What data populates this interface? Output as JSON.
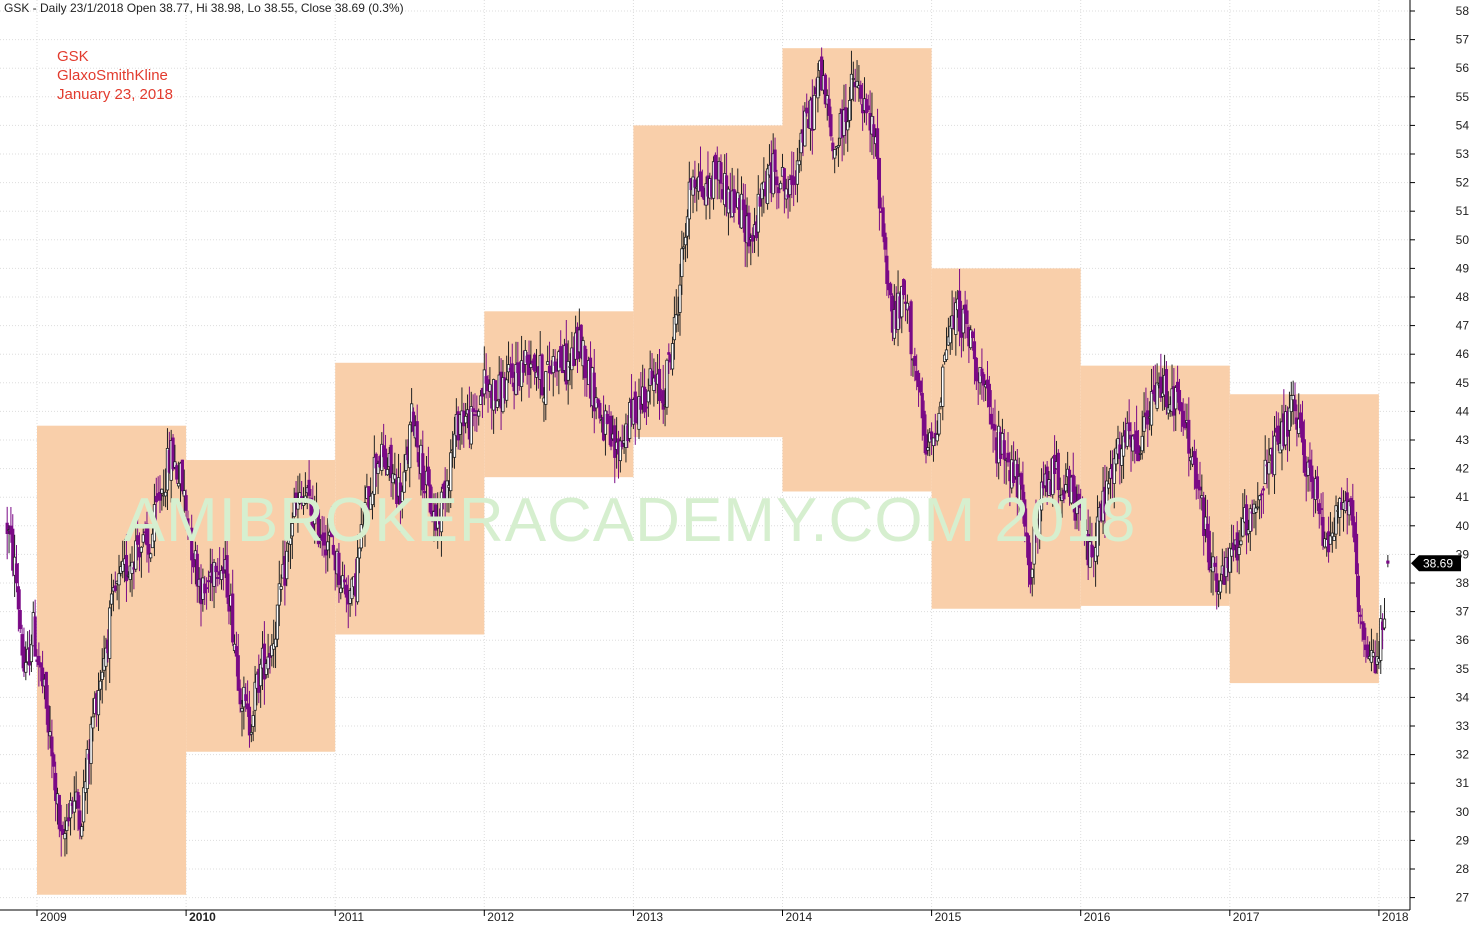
{
  "header": "GSK - Daily 23/1/2018 Open 38.77, Hi 38.98, Lo 38.55, Close 38.69 (0.3%)",
  "annotations": [
    "GSK",
    "GlaxoSmithKline",
    "January 23, 2018"
  ],
  "watermark": "AMIBROKERACADEMY.COM  2018",
  "last_price_label": "38.69",
  "colors": {
    "year_box": "#f9cfaa",
    "candle_up": "#222222",
    "candle_down": "#7a0a86",
    "annotation": "#e23b2e",
    "watermark": "#d6efcf",
    "grid": "#dddddd",
    "price_marker": "#000000"
  },
  "chart_data": {
    "type": "candlestick",
    "symbol": "GSK",
    "interval": "Daily",
    "ylim": [
      27,
      58
    ],
    "xlim": [
      2008.8,
      2018.22
    ],
    "y_ticks": [
      27,
      28,
      29,
      30,
      31,
      32,
      33,
      34,
      35,
      36,
      37,
      38,
      39,
      40,
      41,
      42,
      43,
      44,
      45,
      46,
      47,
      48,
      49,
      50,
      51,
      52,
      53,
      54,
      55,
      56,
      57,
      58
    ],
    "x_ticks": [
      {
        "label": "2009",
        "x": 2009
      },
      {
        "label": "2010",
        "x": 2010
      },
      {
        "label": "2011",
        "x": 2011
      },
      {
        "label": "2012",
        "x": 2012
      },
      {
        "label": "2013",
        "x": 2013
      },
      {
        "label": "2014",
        "x": 2014
      },
      {
        "label": "2015",
        "x": 2015
      },
      {
        "label": "2016",
        "x": 2016
      },
      {
        "label": "2017",
        "x": 2017
      },
      {
        "label": "2018",
        "x": 2018
      }
    ],
    "last_close": {
      "x": 2018.06,
      "open": 38.77,
      "high": 38.98,
      "low": 38.55,
      "close": 38.69
    },
    "yearly_ranges": [
      {
        "year": 2009,
        "low": 27.1,
        "high": 43.5
      },
      {
        "year": 2010,
        "low": 32.1,
        "high": 42.3
      },
      {
        "year": 2011,
        "low": 36.2,
        "high": 45.7
      },
      {
        "year": 2012,
        "low": 41.7,
        "high": 47.5
      },
      {
        "year": 2013,
        "low": 43.1,
        "high": 54.0
      },
      {
        "year": 2014,
        "low": 41.2,
        "high": 56.7
      },
      {
        "year": 2015,
        "low": 37.1,
        "high": 49.0
      },
      {
        "year": 2016,
        "low": 37.2,
        "high": 45.6
      },
      {
        "year": 2017,
        "low": 34.5,
        "high": 44.6
      }
    ],
    "price_path": [
      [
        2008.8,
        40.0
      ],
      [
        2008.86,
        38.2
      ],
      [
        2008.92,
        34.5
      ],
      [
        2008.97,
        36.5
      ],
      [
        2009.05,
        34.0
      ],
      [
        2009.12,
        31.0
      ],
      [
        2009.17,
        28.5
      ],
      [
        2009.22,
        30.5
      ],
      [
        2009.3,
        30.0
      ],
      [
        2009.38,
        33.5
      ],
      [
        2009.45,
        35.5
      ],
      [
        2009.52,
        37.5
      ],
      [
        2009.6,
        38.5
      ],
      [
        2009.68,
        39.5
      ],
      [
        2009.75,
        39.0
      ],
      [
        2009.82,
        41.0
      ],
      [
        2009.9,
        42.5
      ],
      [
        2009.97,
        41.5
      ],
      [
        2010.05,
        39.0
      ],
      [
        2010.12,
        37.5
      ],
      [
        2010.2,
        39.0
      ],
      [
        2010.28,
        38.0
      ],
      [
        2010.36,
        34.5
      ],
      [
        2010.42,
        33.0
      ],
      [
        2010.5,
        35.0
      ],
      [
        2010.58,
        36.0
      ],
      [
        2010.65,
        38.0
      ],
      [
        2010.72,
        40.5
      ],
      [
        2010.8,
        41.0
      ],
      [
        2010.88,
        40.0
      ],
      [
        2010.96,
        39.5
      ],
      [
        2011.05,
        38.0
      ],
      [
        2011.12,
        37.5
      ],
      [
        2011.2,
        40.5
      ],
      [
        2011.28,
        42.5
      ],
      [
        2011.36,
        42.0
      ],
      [
        2011.45,
        41.0
      ],
      [
        2011.52,
        44.0
      ],
      [
        2011.6,
        41.5
      ],
      [
        2011.68,
        40.0
      ],
      [
        2011.76,
        42.0
      ],
      [
        2011.84,
        44.0
      ],
      [
        2011.92,
        43.5
      ],
      [
        2012.0,
        45.0
      ],
      [
        2012.08,
        44.5
      ],
      [
        2012.16,
        45.0
      ],
      [
        2012.24,
        45.5
      ],
      [
        2012.32,
        46.0
      ],
      [
        2012.4,
        45.0
      ],
      [
        2012.48,
        46.0
      ],
      [
        2012.56,
        45.5
      ],
      [
        2012.64,
        46.5
      ],
      [
        2012.72,
        45.0
      ],
      [
        2012.8,
        43.5
      ],
      [
        2012.88,
        42.5
      ],
      [
        2012.96,
        43.5
      ],
      [
        2013.05,
        44.5
      ],
      [
        2013.12,
        45.0
      ],
      [
        2013.2,
        44.5
      ],
      [
        2013.28,
        47.0
      ],
      [
        2013.34,
        50.0
      ],
      [
        2013.4,
        52.5
      ],
      [
        2013.48,
        51.5
      ],
      [
        2013.56,
        52.5
      ],
      [
        2013.64,
        51.5
      ],
      [
        2013.72,
        51.0
      ],
      [
        2013.8,
        50.0
      ],
      [
        2013.88,
        52.0
      ],
      [
        2013.96,
        52.5
      ],
      [
        2014.05,
        51.5
      ],
      [
        2014.12,
        53.5
      ],
      [
        2014.2,
        54.5
      ],
      [
        2014.26,
        56.0
      ],
      [
        2014.34,
        53.0
      ],
      [
        2014.4,
        54.0
      ],
      [
        2014.48,
        55.5
      ],
      [
        2014.55,
        54.5
      ],
      [
        2014.62,
        53.5
      ],
      [
        2014.68,
        50.0
      ],
      [
        2014.74,
        47.0
      ],
      [
        2014.82,
        48.0
      ],
      [
        2014.88,
        46.0
      ],
      [
        2014.96,
        42.5
      ],
      [
        2015.02,
        43.0
      ],
      [
        2015.1,
        46.5
      ],
      [
        2015.18,
        47.5
      ],
      [
        2015.26,
        46.5
      ],
      [
        2015.34,
        45.0
      ],
      [
        2015.42,
        43.0
      ],
      [
        2015.5,
        42.5
      ],
      [
        2015.58,
        41.5
      ],
      [
        2015.66,
        38.5
      ],
      [
        2015.74,
        41.0
      ],
      [
        2015.82,
        42.0
      ],
      [
        2015.9,
        41.5
      ],
      [
        2015.98,
        40.5
      ],
      [
        2016.06,
        39.0
      ],
      [
        2016.14,
        40.5
      ],
      [
        2016.22,
        42.0
      ],
      [
        2016.3,
        43.0
      ],
      [
        2016.38,
        42.5
      ],
      [
        2016.46,
        44.0
      ],
      [
        2016.54,
        45.0
      ],
      [
        2016.62,
        44.5
      ],
      [
        2016.7,
        43.5
      ],
      [
        2016.78,
        41.5
      ],
      [
        2016.86,
        39.0
      ],
      [
        2016.94,
        37.8
      ],
      [
        2017.02,
        39.0
      ],
      [
        2017.1,
        40.0
      ],
      [
        2017.18,
        41.0
      ],
      [
        2017.26,
        42.0
      ],
      [
        2017.34,
        43.0
      ],
      [
        2017.42,
        44.0
      ],
      [
        2017.5,
        42.5
      ],
      [
        2017.58,
        41.0
      ],
      [
        2017.64,
        39.5
      ],
      [
        2017.72,
        40.5
      ],
      [
        2017.8,
        41.0
      ],
      [
        2017.85,
        38.0
      ],
      [
        2017.88,
        36.0
      ],
      [
        2017.94,
        35.0
      ],
      [
        2017.99,
        35.5
      ],
      [
        2018.03,
        37.0
      ],
      [
        2018.06,
        38.69
      ]
    ]
  }
}
